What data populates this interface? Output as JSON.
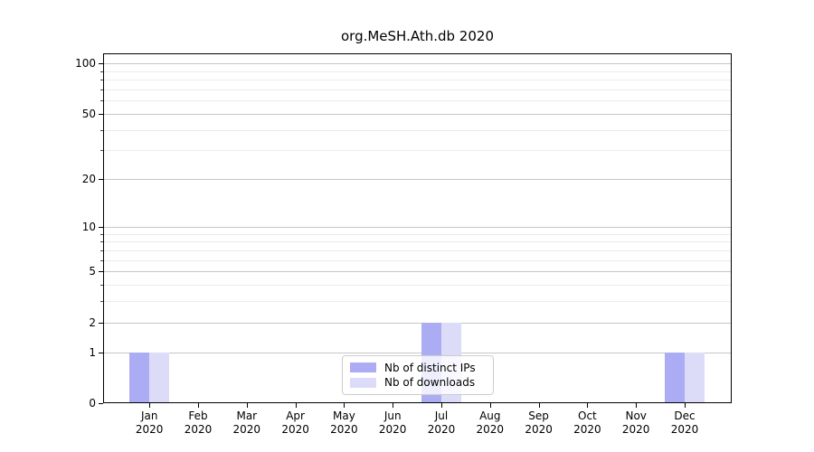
{
  "chart_data": {
    "type": "bar",
    "title": "org.MeSH.Ath.db 2020",
    "categories": [
      {
        "month": "Jan",
        "year": "2020"
      },
      {
        "month": "Feb",
        "year": "2020"
      },
      {
        "month": "Mar",
        "year": "2020"
      },
      {
        "month": "Apr",
        "year": "2020"
      },
      {
        "month": "May",
        "year": "2020"
      },
      {
        "month": "Jun",
        "year": "2020"
      },
      {
        "month": "Jul",
        "year": "2020"
      },
      {
        "month": "Aug",
        "year": "2020"
      },
      {
        "month": "Sep",
        "year": "2020"
      },
      {
        "month": "Oct",
        "year": "2020"
      },
      {
        "month": "Nov",
        "year": "2020"
      },
      {
        "month": "Dec",
        "year": "2020"
      }
    ],
    "series": [
      {
        "name": "Nb of distinct IPs",
        "color": "#acacf4",
        "values": [
          1,
          0,
          0,
          0,
          0,
          0,
          2,
          0,
          0,
          0,
          0,
          1
        ]
      },
      {
        "name": "Nb of downloads",
        "color": "#dcdcf9",
        "values": [
          1,
          0,
          0,
          0,
          0,
          0,
          2,
          0,
          0,
          0,
          0,
          1
        ]
      }
    ],
    "yscale": "log1p",
    "ylim": [
      0,
      115
    ],
    "y_major_ticks": [
      0,
      1,
      2,
      5,
      10,
      20,
      50,
      100
    ],
    "y_minor_ticks": [
      3,
      4,
      6,
      7,
      8,
      9,
      30,
      40,
      60,
      70,
      80,
      90
    ],
    "grid": true,
    "legend_position": "lower center",
    "colors": {
      "axis": "#000000",
      "grid_major": "#c6c6c6",
      "grid_minor": "#ebebeb",
      "background": "#ffffff"
    }
  }
}
